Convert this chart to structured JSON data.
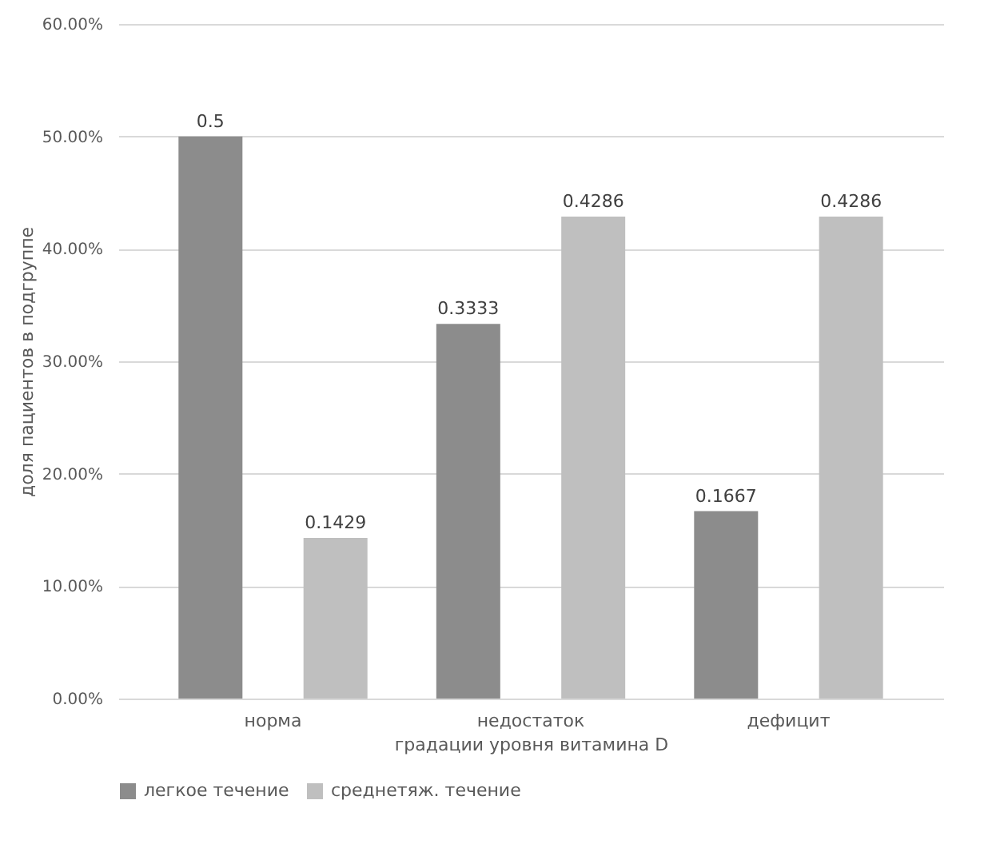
{
  "chart_data": {
    "type": "bar",
    "xlabel": "градации уровня витамина D",
    "ylabel": "доля пациентов в подгруппе",
    "categories": [
      "норма",
      "недостаток",
      "дефицит"
    ],
    "series": [
      {
        "name": "легкое течение",
        "color": "#8c8c8c",
        "values": [
          0.5,
          0.3333,
          0.1667
        ]
      },
      {
        "name": "среднетяж. течение",
        "color": "#bfbfbf",
        "values": [
          0.1429,
          0.4286,
          0.4286
        ]
      }
    ],
    "ylim": [
      0,
      0.6
    ],
    "yticks": [
      {
        "value": 0,
        "label": "0.00%"
      },
      {
        "value": 0.1,
        "label": "10.00%"
      },
      {
        "value": 0.2,
        "label": "20.00%"
      },
      {
        "value": 0.3,
        "label": "30.00%"
      },
      {
        "value": 0.4,
        "label": "40.00%"
      },
      {
        "value": 0.5,
        "label": "50.00%"
      },
      {
        "value": 0.6,
        "label": "60.00%"
      }
    ],
    "grid": "y",
    "legend": "bottom",
    "data_labels": true
  }
}
